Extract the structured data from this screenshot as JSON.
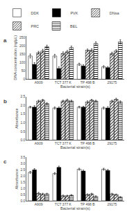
{
  "chart_data": [
    {
      "type": "bar",
      "title": "a",
      "categories": [
        "A909",
        "TCT 377 K",
        "TP 498 B",
        "29175"
      ],
      "xlabel": "Bacterial strain(s)",
      "ylabel": "DNA concentration (ng/µL)",
      "series": [
        {
          "name": "DDK",
          "color": "white",
          "values": [
            140,
            140,
            90,
            75
          ],
          "errors": [
            12,
            10,
            7,
            7
          ]
        },
        {
          "name": "PVK",
          "color": "black",
          "values": [
            90,
            65,
            80,
            70
          ],
          "errors": [
            10,
            10,
            8,
            7
          ]
        },
        {
          "name": "DNsa",
          "color": "#aaaaaa",
          "values": [
            160,
            155,
            175,
            155
          ],
          "errors": [
            8,
            10,
            7,
            8
          ]
        },
        {
          "name": "PRC",
          "color": "#cccccc",
          "values": [
            170,
            165,
            175,
            170
          ],
          "errors": [
            10,
            8,
            8,
            8
          ]
        },
        {
          "name": "BEL",
          "color": "#bbbbbb",
          "values": [
            195,
            190,
            215,
            225
          ],
          "errors": [
            10,
            10,
            10,
            12
          ]
        }
      ],
      "ylim": [
        0,
        260
      ],
      "yticks": [
        0,
        50,
        100,
        150,
        200,
        250
      ],
      "grid": false,
      "legend": "top"
    },
    {
      "type": "bar",
      "title": "b",
      "categories": [
        "A909",
        "TCT 377 K",
        "TP 498 B",
        "29175"
      ],
      "xlabel": "Bacterial strain(s)",
      "ylabel": "Absorbance",
      "series": [
        {
          "name": "DDK",
          "color": "white",
          "values": [
            1.9,
            1.85,
            1.9,
            1.85
          ],
          "errors": [
            0.05,
            0.06,
            0.05,
            0.06
          ]
        },
        {
          "name": "PVK",
          "color": "black",
          "values": [
            1.9,
            1.85,
            1.9,
            1.85
          ],
          "errors": [
            0.08,
            0.06,
            0.05,
            0.08
          ]
        },
        {
          "name": "DNsa",
          "color": "#aaaaaa",
          "values": [
            2.25,
            2.25,
            2.2,
            2.25
          ],
          "errors": [
            0.05,
            0.05,
            0.06,
            0.05
          ]
        },
        {
          "name": "PRC",
          "color": "#cccccc",
          "values": [
            2.3,
            2.3,
            2.3,
            2.35
          ],
          "errors": [
            0.05,
            0.06,
            0.05,
            0.06
          ]
        },
        {
          "name": "BEL",
          "color": "#bbbbbb",
          "values": [
            2.1,
            2.25,
            2.25,
            2.2
          ],
          "errors": [
            0.06,
            0.05,
            0.05,
            0.06
          ]
        }
      ],
      "ylim": [
        0,
        2.5
      ],
      "yticks": [
        {
          "value": 0,
          "label": "0.0"
        },
        0.5,
        {
          "value": 1,
          "label": "1.0"
        },
        1.5,
        {
          "value": 2,
          "label": "2.0"
        },
        2.5
      ],
      "grid": false,
      "legend": "top"
    },
    {
      "type": "bar",
      "title": "c",
      "categories": [
        "A909",
        "TCT 377 K",
        "TP 498 B",
        "29175"
      ],
      "xlabel": "Bacterial strain(s)",
      "ylabel": "Absorbance",
      "series": [
        {
          "name": "DDK",
          "color": "white",
          "values": [
            2.3,
            2.2,
            2.55,
            2.55
          ],
          "errors": [
            0.08,
            0.08,
            0.08,
            0.08
          ]
        },
        {
          "name": "PVK",
          "color": "black",
          "values": [
            2.5,
            2.7,
            2.4,
            2.45
          ],
          "errors": [
            0.1,
            0.1,
            0.08,
            0.08
          ]
        },
        {
          "name": "DNsa",
          "color": "#aaaaaa",
          "values": [
            0.6,
            0.4,
            0.5,
            0.55
          ],
          "errors": [
            0.08,
            0.06,
            0.06,
            0.06
          ]
        },
        {
          "name": "PRC",
          "color": "#cccccc",
          "values": [
            0.55,
            0.4,
            0.55,
            0.5
          ],
          "errors": [
            0.06,
            0.05,
            0.06,
            0.05
          ]
        },
        {
          "name": "BEL",
          "color": "#bbbbbb",
          "values": [
            0.55,
            0.45,
            0.35,
            0.3
          ],
          "errors": [
            0.06,
            0.05,
            0.05,
            0.04
          ]
        }
      ],
      "ylim": [
        0,
        3.5
      ],
      "yticks": [
        {
          "value": 0,
          "label": "0.0"
        },
        0.5,
        {
          "value": 1,
          "label": "1.0"
        },
        1.5,
        {
          "value": 2,
          "label": "2.0"
        },
        2.5,
        {
          "value": 3,
          "label": "3.0"
        },
        3.5
      ],
      "grid": false,
      "legend": "top"
    }
  ]
}
